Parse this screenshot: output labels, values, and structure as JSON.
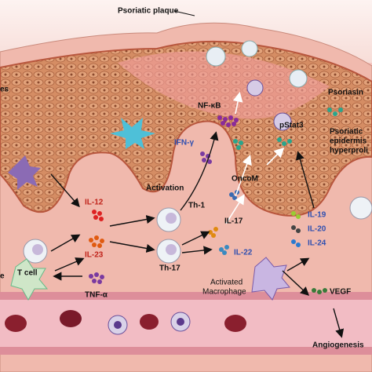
{
  "header": {
    "title": "Psoriatic plaque"
  },
  "labels": {
    "left_top_cut": "es",
    "nfkb": "NF-κB",
    "psoriasin": "Psoriasin",
    "epidermis_1": "Psoriatic",
    "epidermis_2": "epidermis",
    "epidermis_3": "hyperproli",
    "ifn": "IFN-γ",
    "pstat3": "pStat3",
    "oncom": "OncoM",
    "activation": "Activation",
    "il12": "IL-12",
    "th1": "Th-1",
    "il17": "IL-17",
    "il23": "IL-23",
    "tcell": "T cell",
    "th17": "Th-17",
    "il22": "IL-22",
    "il19": "IL-19",
    "il20": "IL-20",
    "il24": "IL-24",
    "left_mid_cut": "e",
    "tnf": "TNF-α",
    "macrophage_1": "Activated",
    "macrophage_2": "Macrophage",
    "vegf": "VEGF",
    "angiogenesis": "Angiogenesis"
  }
}
